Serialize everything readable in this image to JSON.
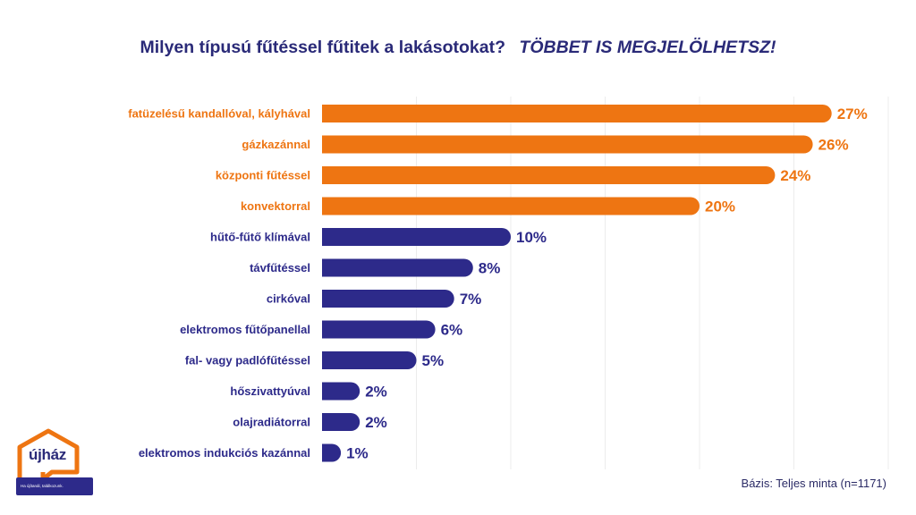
{
  "header": {
    "title": "Milyen típusú fűtéssel fűtitek a lakásotokat?",
    "subtitle": "TÖBBET IS MEGJELÖLHETSZ!"
  },
  "chart_data": {
    "type": "bar",
    "orientation": "horizontal",
    "categories": [
      "fatüzelésű kandallóval, kályhával",
      "gázkazánnal",
      "központi fűtéssel",
      "konvektorral",
      "hűtő-fűtő klímával",
      "távfűtéssel",
      "cirkóval",
      "elektromos fűtőpanellal",
      "fal- vagy padlófűtéssel",
      "hőszivattyúval",
      "olajradiátorral",
      "elektromos indukciós kazánnal"
    ],
    "values": [
      27,
      26,
      24,
      20,
      10,
      8,
      7,
      6,
      5,
      2,
      2,
      1
    ],
    "value_suffix": "%",
    "highlight_top_n": 4,
    "colors": {
      "highlight": "#ee7512",
      "default": "#2d2a8a"
    },
    "xlim": [
      0,
      30
    ],
    "grid": true,
    "legend": "none"
  },
  "footnote": "Bázis: Teljes minta (n=1171)",
  "logo": {
    "name": "újház",
    "tagline": "Ha újítanál, találkozunk."
  }
}
